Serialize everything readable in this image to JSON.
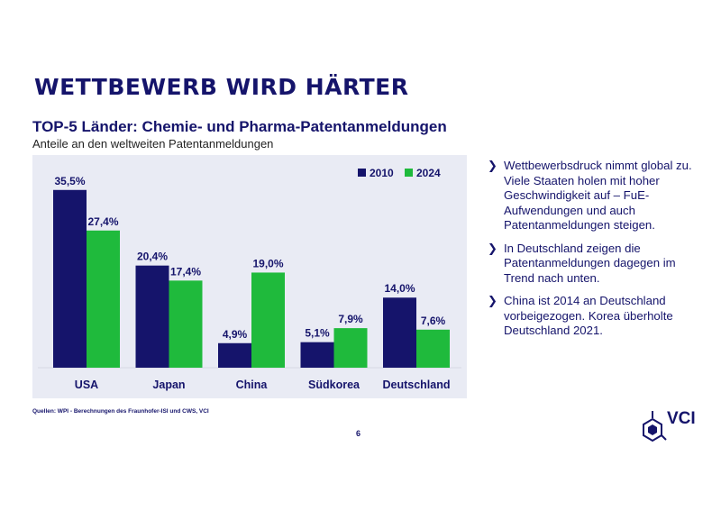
{
  "header": {
    "title": "WETTBEWERB WIRD HÄRTER"
  },
  "chart_data": {
    "type": "bar",
    "title": "TOP-5 Länder: Chemie- und Pharma-Patentanmeldungen",
    "subtitle": "Anteile an den weltweiten Patentanmeldungen",
    "categories": [
      "USA",
      "Japan",
      "China",
      "Südkorea",
      "Deutschland"
    ],
    "series": [
      {
        "name": "2010",
        "values": [
          35.5,
          20.4,
          4.9,
          5.1,
          14.0
        ],
        "labels": [
          "35,5%",
          "20,4%",
          "4,9%",
          "5,1%",
          "14,0%"
        ],
        "color": "#15146b"
      },
      {
        "name": "2024",
        "values": [
          27.4,
          17.4,
          19.0,
          7.9,
          7.6
        ],
        "labels": [
          "27,4%",
          "17,4%",
          "19,0%",
          "7,9%",
          "7,6%"
        ],
        "color": "#1fba3c"
      }
    ],
    "ylim": [
      0,
      36
    ],
    "grid": false,
    "legend_position": "top-right"
  },
  "source": "Quellen: WPI - Berechnungen des Fraunhofer-ISI und CWS, VCI",
  "bullets": [
    {
      "text": "Wettbewerbsdruck nimmt global zu. Viele Staaten holen mit hoher Geschwindigkeit auf – FuE-Aufwendungen und auch Patentanmeldungen steigen."
    },
    {
      "text": "In Deutschland zeigen die Patentanmeldungen dagegen im Trend nach unten."
    },
    {
      "text": "China ist 2014 an Deutschland vorbeigezogen. Korea überholte Deutschland 2021."
    }
  ],
  "bullet_glyph": "❯",
  "page_number": "6",
  "logo": {
    "text": "VCI",
    "icon": "hexagon-molecule-icon"
  },
  "colors": {
    "navy": "#15146b",
    "green": "#1fba3c",
    "panel": "#e9ebf4"
  }
}
